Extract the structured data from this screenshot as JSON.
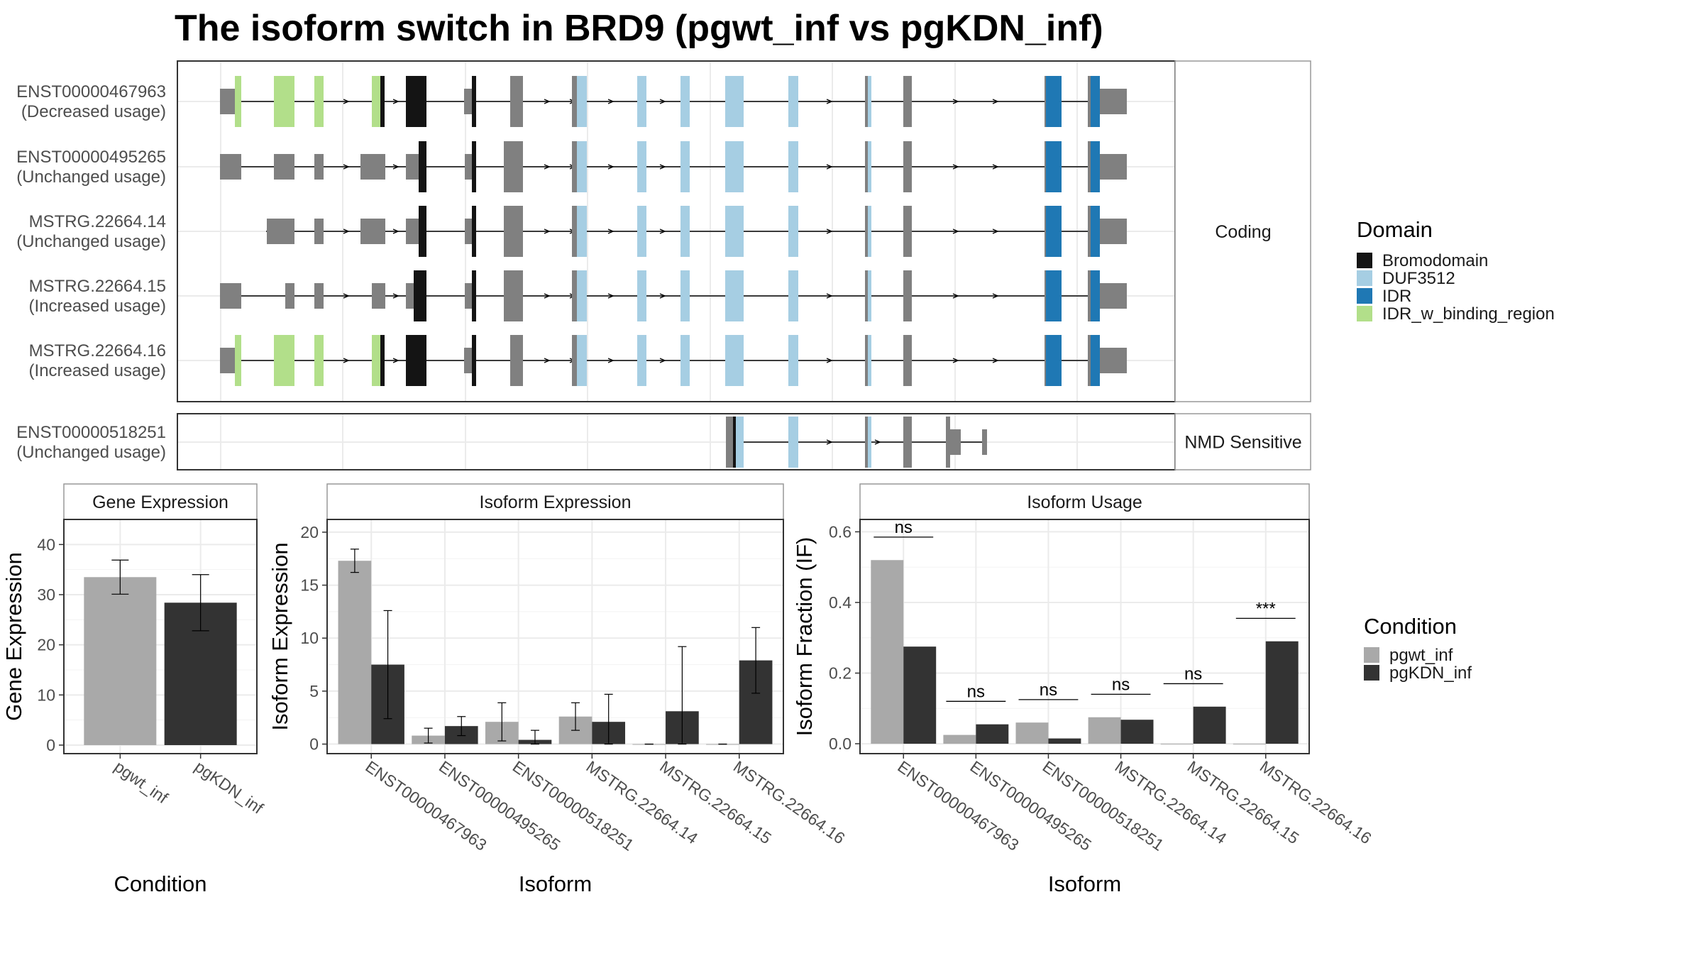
{
  "title": "The isoform switch in BRD9 (pgwt_inf vs pgKDN_inf)",
  "colors": {
    "exon": "#808080",
    "Bromodomain": "#141414",
    "DUF3512": "#a6cee3",
    "IDR": "#1f78b4",
    "IDR_w_binding_region": "#b2df8a",
    "pgwt_inf": "#a9a9a9",
    "pgKDN_inf": "#333333",
    "grid": "#ebebeb",
    "panel_border": "#333333",
    "strip_border": "#999999",
    "strip_fill": "#ffffff"
  },
  "structure": {
    "coding_facet_label": "Coding",
    "nmd_facet_label": "NMD Sensitive",
    "coding_isoforms": [
      {
        "name": "ENST00000467963",
        "usage": "(Decreased usage)"
      },
      {
        "name": "ENST00000495265",
        "usage": "(Unchanged usage)"
      },
      {
        "name": "MSTRG.22664.14",
        "usage": "(Unchanged usage)"
      },
      {
        "name": "MSTRG.22664.15",
        "usage": "(Increased usage)"
      },
      {
        "name": "MSTRG.22664.16",
        "usage": "(Increased usage)"
      }
    ],
    "nmd_isoforms": [
      {
        "name": "ENST00000518251",
        "usage": "(Unchanged usage)"
      }
    ],
    "legend": {
      "title": "Domain",
      "entries": [
        "Bromodomain",
        "DUF3512",
        "IDR",
        "IDR_w_binding_region"
      ]
    }
  },
  "chart_data": [
    {
      "type": "bar",
      "strip": "Gene Expression",
      "categories": [
        "pgwt_inf",
        "pgKDN_inf"
      ],
      "values": [
        33.5,
        28.4
      ],
      "error_low": [
        30.1,
        22.8
      ],
      "error_high": [
        36.9,
        34.0
      ],
      "xlabel": "Condition",
      "ylabel": "Gene Expression",
      "ylim": [
        -1.7,
        45
      ],
      "yticks": [
        0,
        10,
        20,
        30,
        40
      ]
    },
    {
      "type": "bar",
      "strip": "Isoform Expression",
      "categories": [
        "ENST00000467963",
        "ENST00000495265",
        "ENST00000518251",
        "MSTRG.22664.14",
        "MSTRG.22664.15",
        "MSTRG.22664.16"
      ],
      "series": [
        {
          "name": "pgwt_inf",
          "values": [
            17.3,
            0.8,
            2.1,
            2.6,
            0.0,
            0.0
          ],
          "error_low": [
            16.2,
            0.1,
            0.3,
            1.3,
            0.0,
            0.0
          ],
          "error_high": [
            18.4,
            1.5,
            3.9,
            3.9,
            0.0,
            0.0
          ]
        },
        {
          "name": "pgKDN_inf",
          "values": [
            7.5,
            1.7,
            0.4,
            2.1,
            3.1,
            7.9
          ],
          "error_low": [
            2.4,
            0.8,
            0.0,
            0.0,
            0.0,
            4.8
          ],
          "error_high": [
            12.6,
            2.6,
            1.3,
            4.7,
            9.2,
            11.0
          ]
        }
      ],
      "xlabel": "Isoform",
      "ylabel": "Isoform Expression",
      "ylim": [
        -0.9,
        21.2
      ],
      "yticks": [
        0,
        5,
        10,
        15,
        20
      ]
    },
    {
      "type": "bar",
      "strip": "Isoform Usage",
      "categories": [
        "ENST00000467963",
        "ENST00000495265",
        "ENST00000518251",
        "MSTRG.22664.14",
        "MSTRG.22664.15",
        "MSTRG.22664.16"
      ],
      "series": [
        {
          "name": "pgwt_inf",
          "values": [
            0.52,
            0.025,
            0.06,
            0.075,
            0.0,
            0.0
          ]
        },
        {
          "name": "pgKDN_inf",
          "values": [
            0.275,
            0.055,
            0.015,
            0.068,
            0.105,
            0.29
          ]
        }
      ],
      "significance": [
        "ns",
        "ns",
        "ns",
        "ns",
        "ns",
        "***"
      ],
      "xlabel": "Isoform",
      "ylabel": "Isoform Fraction (IF)",
      "ylim": [
        -0.028,
        0.635
      ],
      "yticks": [
        0.0,
        0.2,
        0.4,
        0.6
      ],
      "ytick_labels": [
        "0.0",
        "0.2",
        "0.4",
        "0.6"
      ]
    }
  ],
  "condition_legend": {
    "title": "Condition",
    "entries": [
      "pgwt_inf",
      "pgKDN_inf"
    ]
  }
}
